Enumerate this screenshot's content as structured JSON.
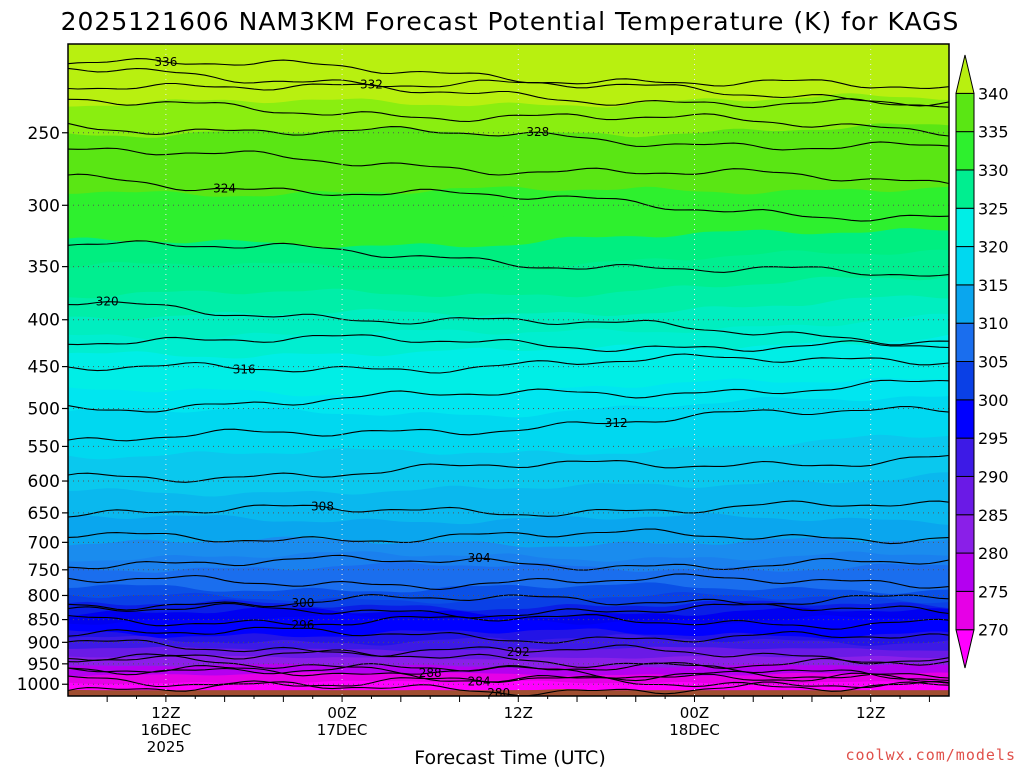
{
  "chart_data": {
    "type": "heatmap",
    "title": "2025121606 NAM3KM Forecast Potential Temperature (K) for KAGS",
    "xlabel": "Forecast Time (UTC)",
    "ylabel": "",
    "y_ticks": [
      250,
      300,
      350,
      400,
      450,
      500,
      550,
      600,
      650,
      700,
      750,
      800,
      850,
      900,
      950,
      1000
    ],
    "y_tick_labels": [
      "250",
      "300",
      "350",
      "400",
      "450",
      "500",
      "550",
      "600",
      "650",
      "700",
      "750",
      "800",
      "850",
      "900",
      "950",
      "1000"
    ],
    "ylim": [
      1030,
      200
    ],
    "y_scale": "log-pressure",
    "x_range_hours": [
      -4,
      86
    ],
    "x_ticks": [
      {
        "hours": 6,
        "line1": "12Z",
        "line2": "16DEC",
        "line3": "2025"
      },
      {
        "hours": 24,
        "line1": "00Z",
        "line2": "17DEC",
        "line3": ""
      },
      {
        "hours": 42,
        "line1": "12Z",
        "line2": "",
        "line3": ""
      },
      {
        "hours": 60,
        "line1": "00Z",
        "line2": "18DEC",
        "line3": ""
      },
      {
        "hours": 78,
        "line1": "12Z",
        "line2": "",
        "line3": ""
      }
    ],
    "grid": true,
    "colorbar": {
      "levels": [
        270,
        275,
        280,
        285,
        290,
        295,
        300,
        305,
        310,
        315,
        320,
        325,
        330,
        335,
        340
      ],
      "labels": [
        "270",
        "275",
        "280",
        "285",
        "290",
        "295",
        "300",
        "305",
        "310",
        "315",
        "320",
        "325",
        "330",
        "335",
        "340"
      ],
      "colors": [
        "#ff00ff",
        "#e600e6",
        "#b400f0",
        "#8a1fe8",
        "#6a1ae6",
        "#3d1ae6",
        "#0000ff",
        "#0a40e6",
        "#1a6eee",
        "#0aa6ee",
        "#00d8f0",
        "#00eee6",
        "#00ee90",
        "#2ef02e",
        "#5ae614",
        "#b8f010"
      ],
      "extend": "both"
    },
    "fill_bands": [
      {
        "pressures": [
          1018,
          995,
          975,
          955,
          935,
          915,
          895,
          880,
          865,
          850,
          835,
          820,
          805,
          785,
          765,
          745,
          725,
          700,
          680,
          660,
          640,
          615,
          590,
          560,
          530,
          505,
          480,
          460,
          435,
          415,
          395,
          375,
          350,
          330,
          310,
          290,
          270,
          250,
          232,
          215,
          204
        ],
        "colors": [
          "#a04e30",
          "#ff00ff",
          "#e600e6",
          "#b400f0",
          "#8a1fe8",
          "#6a1ae6",
          "#3d1ae6",
          "#2314e6",
          "#0000ff",
          "#0000ff",
          "#0000f0",
          "#0a1fe6",
          "#0a40e6",
          "#0a50e6",
          "#1a6eee",
          "#1a6eee",
          "#1a80ee",
          "#1a8cee",
          "#0aa6ee",
          "#0aa6ee",
          "#0ab8ee",
          "#0ab8ee",
          "#0ac8ee",
          "#0ac8ee",
          "#00d8f0",
          "#00d8f0",
          "#00e6f0",
          "#00eee6",
          "#00eee6",
          "#00eed0",
          "#00eec0",
          "#00eea8",
          "#00ee90",
          "#00ee80",
          "#2ef02e",
          "#2ef02e",
          "#5ae614",
          "#5ae614",
          "#8aee10",
          "#b8f010",
          "#b8f010"
        ]
      }
    ],
    "isentropes": [
      {
        "value": 280,
        "p_start": 1012,
        "p_end": 1010,
        "label": "280",
        "label_hours": 40
      },
      {
        "value": 284,
        "p_start": 968,
        "p_end": 990,
        "label": "284",
        "label_hours": 38
      },
      {
        "value": 288,
        "p_start": 945,
        "p_end": 975,
        "label": "288",
        "label_hours": 33
      },
      {
        "value": 292,
        "p_start": 905,
        "p_end": 935,
        "label": "292",
        "label_hours": 42
      },
      {
        "value": 296,
        "p_start": 850,
        "p_end": 855,
        "label": "296",
        "label_hours": 20
      },
      {
        "value": 300,
        "p_start": 815,
        "p_end": 805,
        "label": "300",
        "label_hours": 20
      },
      {
        "value": 304,
        "p_start": 735,
        "p_end": 740,
        "label": "304",
        "label_hours": 38
      },
      {
        "value": 308,
        "p_start": 650,
        "p_end": 640,
        "label": "308",
        "label_hours": 22
      },
      {
        "value": 312,
        "p_start": 545,
        "p_end": 500,
        "label": "312",
        "label_hours": 52
      },
      {
        "value": 316,
        "p_start": 455,
        "p_end": 440,
        "label": "316",
        "label_hours": 14
      },
      {
        "value": 320,
        "p_start": 385,
        "p_end": 420,
        "label": "320",
        "label_hours": 0
      },
      {
        "value": 324,
        "p_start": 280,
        "p_end": 310,
        "label": "324",
        "label_hours": 12
      },
      {
        "value": 328,
        "p_start": 245,
        "p_end": 260,
        "label": "328",
        "label_hours": 44
      },
      {
        "value": 332,
        "p_start": 220,
        "p_end": 235,
        "label": "332",
        "label_hours": 27
      },
      {
        "value": 336,
        "p_start": 208,
        "p_end": 225,
        "label": "336",
        "label_hours": 6
      }
    ],
    "ground_band": {
      "color": "#a04e30",
      "p_top": 1015
    }
  },
  "credit": "coolwx.com/models"
}
